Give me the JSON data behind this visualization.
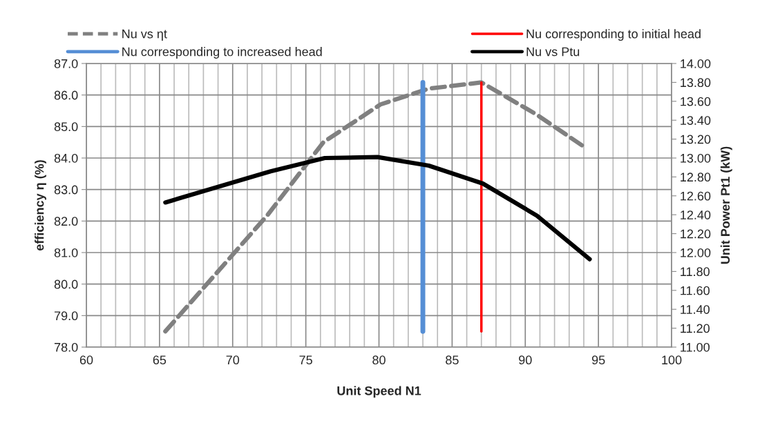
{
  "chart_data": {
    "type": "line",
    "xlabel": "Unit Speed N1",
    "ylabel": "efficiency η (%)",
    "y2label": "Unit Power Pt1 (kW)",
    "series": [
      {
        "name": "Nu vs ηt",
        "color": "#808080",
        "line_style": "dashed",
        "x": [
          65.4,
          72.4,
          76.2,
          80.1,
          83.4,
          87.0,
          90.7,
          94.2
        ],
        "values": [
          78.5,
          82.2,
          84.5,
          85.7,
          86.2,
          86.4,
          85.4,
          84.3
        ]
      },
      {
        "name": "Nu corresponding to increased head",
        "color": "#558ed5",
        "x": [
          83.0,
          83.0
        ],
        "values": [
          78.5,
          86.4
        ]
      },
      {
        "name": "Nu corresponding to initial head",
        "color": "#ff0000",
        "x": [
          87.0,
          87.0
        ],
        "values": [
          78.5,
          86.4
        ]
      },
      {
        "name": "Nu vs Ptu",
        "color": "#000000",
        "line_style": "solid",
        "axis": "y2",
        "x": [
          65.4,
          72.6,
          76.3,
          79.9,
          83.4,
          87.1,
          90.8,
          94.4
        ],
        "values": [
          12.53,
          12.86,
          13.0,
          13.01,
          12.92,
          12.73,
          12.39,
          11.93
        ]
      }
    ],
    "xlim": [
      60,
      100
    ],
    "xticks": [
      60,
      {
        "value": 61,
        "label": null
      },
      {
        "value": 62,
        "label": null
      },
      {
        "value": 63,
        "label": null
      },
      {
        "value": 64,
        "label": null
      },
      65,
      {
        "value": 66,
        "label": null
      },
      {
        "value": 67,
        "label": null
      },
      {
        "value": 68,
        "label": null
      },
      {
        "value": 69,
        "label": null
      },
      70,
      {
        "value": 71,
        "label": null
      },
      {
        "value": 72,
        "label": null
      },
      {
        "value": 73,
        "label": null
      },
      {
        "value": 74,
        "label": null
      },
      75,
      {
        "value": 76,
        "label": null
      },
      {
        "value": 77,
        "label": null
      },
      {
        "value": 78,
        "label": null
      },
      {
        "value": 79,
        "label": null
      },
      80,
      {
        "value": 81,
        "label": null
      },
      {
        "value": 82,
        "label": null
      },
      {
        "value": 83,
        "label": null
      },
      {
        "value": 84,
        "label": null
      },
      85,
      {
        "value": 86,
        "label": null
      },
      {
        "value": 87,
        "label": null
      },
      {
        "value": 88,
        "label": null
      },
      {
        "value": 89,
        "label": null
      },
      90,
      {
        "value": 91,
        "label": null
      },
      {
        "value": 92,
        "label": null
      },
      {
        "value": 93,
        "label": null
      },
      {
        "value": 94,
        "label": null
      },
      95,
      {
        "value": 96,
        "label": null
      },
      {
        "value": 97,
        "label": null
      },
      {
        "value": 98,
        "label": null
      },
      {
        "value": 99,
        "label": null
      },
      100
    ],
    "ylim": [
      78,
      87
    ],
    "yticks": [
      {
        "value": 78,
        "label": "78.0"
      },
      {
        "value": 79,
        "label": "79.0"
      },
      {
        "value": 80,
        "label": "80.0"
      },
      {
        "value": 81,
        "label": "81.0"
      },
      {
        "value": 82,
        "label": "82.0"
      },
      {
        "value": 83,
        "label": "83.0"
      },
      {
        "value": 84,
        "label": "84.0"
      },
      {
        "value": 85,
        "label": "85.0"
      },
      {
        "value": 86,
        "label": "86.0"
      },
      {
        "value": 87,
        "label": "87.0"
      }
    ],
    "y2lim": [
      11,
      14
    ],
    "y2ticks": [
      {
        "value": 11,
        "label": "11.00"
      },
      {
        "value": 11.2,
        "label": "11.20"
      },
      {
        "value": 11.4,
        "label": "11.40"
      },
      {
        "value": 11.6,
        "label": "11.60"
      },
      {
        "value": 11.8,
        "label": "11.80"
      },
      {
        "value": 12,
        "label": "12.00"
      },
      {
        "value": 12.2,
        "label": "12.20"
      },
      {
        "value": 12.4,
        "label": "12.40"
      },
      {
        "value": 12.6,
        "label": "12.60"
      },
      {
        "value": 12.8,
        "label": "12.80"
      },
      {
        "value": 13,
        "label": "13.00"
      },
      {
        "value": 13.2,
        "label": "13.20"
      },
      {
        "value": 13.4,
        "label": "13.40"
      },
      {
        "value": 13.6,
        "label": "13.60"
      },
      {
        "value": 13.8,
        "label": "13.80"
      },
      {
        "value": 14,
        "label": "14.00"
      }
    ],
    "grid": true,
    "legend": "top",
    "marker": "none"
  }
}
